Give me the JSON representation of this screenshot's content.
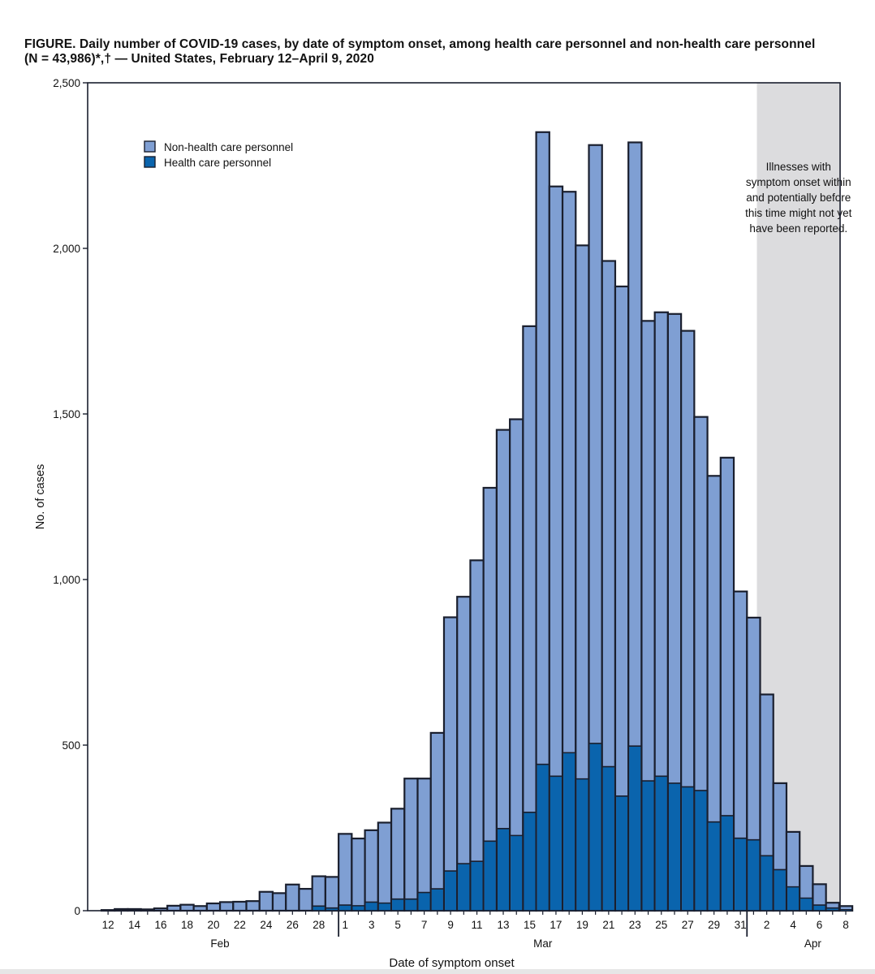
{
  "title": {
    "line1": "FIGURE. Daily number of COVID-19 cases, by date of symptom onset, among health care personnel and non-health care personnel",
    "line2": "(N = 43,986)*,† — United States, February 12–April 9, 2020"
  },
  "colors": {
    "non_hcp": "#7f9fd3",
    "hcp": "#0a64ad",
    "outline": "#1a1f2e",
    "shade": "#dcdcde"
  },
  "chart_data": {
    "type": "bar",
    "stacked": true,
    "xlabel": "Date of symptom onset",
    "ylabel": "No. of cases",
    "ylim": [
      0,
      2500
    ],
    "yticks": [
      0,
      500,
      1000,
      1500,
      2000,
      2500
    ],
    "ytick_labels": [
      "0",
      "500",
      "1,000",
      "1,500",
      "2,000",
      "2,500"
    ],
    "categories": [
      "Feb 12",
      "Feb 13",
      "Feb 14",
      "Feb 15",
      "Feb 16",
      "Feb 17",
      "Feb 18",
      "Feb 19",
      "Feb 20",
      "Feb 21",
      "Feb 22",
      "Feb 23",
      "Feb 24",
      "Feb 25",
      "Feb 26",
      "Feb 27",
      "Feb 28",
      "Feb 29",
      "Mar 1",
      "Mar 2",
      "Mar 3",
      "Mar 4",
      "Mar 5",
      "Mar 6",
      "Mar 7",
      "Mar 8",
      "Mar 9",
      "Mar 10",
      "Mar 11",
      "Mar 12",
      "Mar 13",
      "Mar 14",
      "Mar 15",
      "Mar 16",
      "Mar 17",
      "Mar 18",
      "Mar 19",
      "Mar 20",
      "Mar 21",
      "Mar 22",
      "Mar 23",
      "Mar 24",
      "Mar 25",
      "Mar 26",
      "Mar 27",
      "Mar 28",
      "Mar 29",
      "Mar 30",
      "Mar 31",
      "Apr 1",
      "Apr 2",
      "Apr 3",
      "Apr 4",
      "Apr 5",
      "Apr 6",
      "Apr 7",
      "Apr 8"
    ],
    "xtick_labels": [
      {
        "day": "12",
        "index": 0
      },
      {
        "day": "14",
        "index": 2
      },
      {
        "day": "16",
        "index": 4
      },
      {
        "day": "18",
        "index": 6
      },
      {
        "day": "20",
        "index": 8
      },
      {
        "day": "22",
        "index": 10
      },
      {
        "day": "24",
        "index": 12
      },
      {
        "day": "26",
        "index": 14
      },
      {
        "day": "28",
        "index": 16
      },
      {
        "day": "1",
        "index": 18
      },
      {
        "day": "3",
        "index": 20
      },
      {
        "day": "5",
        "index": 22
      },
      {
        "day": "7",
        "index": 24
      },
      {
        "day": "9",
        "index": 26
      },
      {
        "day": "11",
        "index": 28
      },
      {
        "day": "13",
        "index": 30
      },
      {
        "day": "15",
        "index": 32
      },
      {
        "day": "17",
        "index": 34
      },
      {
        "day": "19",
        "index": 36
      },
      {
        "day": "21",
        "index": 38
      },
      {
        "day": "23",
        "index": 40
      },
      {
        "day": "25",
        "index": 42
      },
      {
        "day": "27",
        "index": 44
      },
      {
        "day": "29",
        "index": 46
      },
      {
        "day": "31",
        "index": 48
      },
      {
        "day": "2",
        "index": 50
      },
      {
        "day": "4",
        "index": 52
      },
      {
        "day": "6",
        "index": 54
      },
      {
        "day": "8",
        "index": 56
      }
    ],
    "month_labels": [
      {
        "label": "Feb",
        "center_index": 8.5
      },
      {
        "label": "Mar",
        "center_index": 33
      },
      {
        "label": "Apr",
        "center_index": 53.5
      }
    ],
    "month_dividers_after_index": [
      17,
      48
    ],
    "shaded_from_index": 50,
    "shaded_note": [
      "Illnesses with",
      "symptom onset within",
      "and potentially before",
      "this time might not yet",
      "have been reported."
    ],
    "series": [
      {
        "name": "Non-health care personnel",
        "totals": [
          2,
          5,
          5,
          4,
          7,
          15,
          18,
          14,
          22,
          26,
          27,
          29,
          57,
          53,
          79,
          66,
          104,
          102,
          232,
          218,
          243,
          266,
          308,
          399,
          399,
          537,
          886,
          948,
          1058,
          1277,
          1452,
          1484,
          1765,
          2351,
          2187,
          2171,
          2009,
          2312,
          1962,
          1885,
          2320,
          1781,
          1807,
          1802,
          1751,
          1491,
          1313,
          1368,
          964,
          885,
          653,
          385,
          238,
          135,
          80,
          24,
          14
        ]
      },
      {
        "name": "Health care personnel",
        "values": [
          0,
          0,
          0,
          0,
          0,
          0,
          0,
          0,
          0,
          0,
          0,
          0,
          0,
          0,
          0,
          0,
          14,
          8,
          17,
          15,
          26,
          23,
          35,
          35,
          55,
          66,
          120,
          142,
          149,
          210,
          248,
          227,
          297,
          442,
          406,
          477,
          398,
          505,
          435,
          346,
          497,
          392,
          406,
          385,
          374,
          363,
          268,
          287,
          219,
          214,
          166,
          124,
          72,
          38,
          17,
          8,
          3
        ]
      }
    ],
    "legend": {
      "position": "top-left",
      "entries": [
        "Non-health care personnel",
        "Health care personnel"
      ]
    },
    "grid": false
  }
}
